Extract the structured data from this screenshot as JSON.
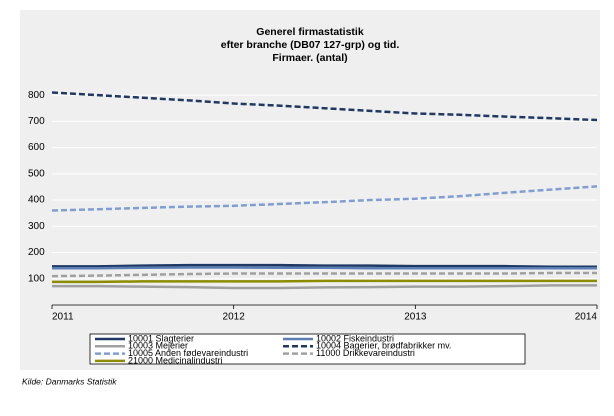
{
  "chart_data": {
    "type": "line",
    "title": "Generel firmastatistik",
    "subtitle": [
      "efter branche (DB07 127-grp) og tid.",
      "Firmaer. (antal)"
    ],
    "source": "Kilde: Danmarks Statistik",
    "x": [
      2011,
      2011.25,
      2011.5,
      2011.75,
      2012,
      2012.25,
      2012.5,
      2012.75,
      2013,
      2013.25,
      2013.5,
      2013.75,
      2014
    ],
    "xlim": [
      2011,
      2014
    ],
    "xticks": [
      2011,
      2012,
      2013,
      2014
    ],
    "ylim": [
      0,
      850
    ],
    "yticks": [
      100,
      200,
      300,
      400,
      500,
      600,
      700,
      800
    ],
    "grid": true,
    "series": [
      {
        "name": "10001 Slagterier",
        "color": "#1f3864",
        "dash": false,
        "values": [
          147,
          147,
          150,
          152,
          152,
          152,
          150,
          150,
          148,
          148,
          148,
          146,
          146
        ]
      },
      {
        "name": "10002 Fiskeindustri",
        "color": "#5b7fb5",
        "dash": false,
        "values": [
          140,
          140,
          142,
          143,
          143,
          142,
          142,
          140,
          140,
          140,
          140,
          140,
          140
        ]
      },
      {
        "name": "10003 Mejerier",
        "color": "#a0a0a0",
        "dash": false,
        "values": [
          72,
          72,
          70,
          68,
          65,
          65,
          67,
          68,
          70,
          70,
          72,
          75,
          75
        ]
      },
      {
        "name": "10004 Bagerier, brødfabrikker mv.",
        "color": "#1f3864",
        "dash": true,
        "values": [
          810,
          800,
          790,
          780,
          768,
          760,
          750,
          740,
          730,
          725,
          718,
          712,
          705
        ]
      },
      {
        "name": "10005 Anden fødevareindustri",
        "color": "#7f9fd4",
        "dash": true,
        "values": [
          360,
          365,
          370,
          375,
          378,
          385,
          392,
          400,
          405,
          415,
          428,
          440,
          452
        ]
      },
      {
        "name": "11000 Drikkevareindustri",
        "color": "#a0a0a0",
        "dash": true,
        "values": [
          110,
          112,
          115,
          118,
          120,
          120,
          120,
          120,
          120,
          120,
          120,
          122,
          122
        ]
      },
      {
        "name": "21000 Medicinalindustri",
        "color": "#8c8c00",
        "dash": false,
        "values": [
          88,
          88,
          90,
          90,
          90,
          90,
          92,
          92,
          92,
          92,
          92,
          92,
          92
        ]
      }
    ]
  }
}
